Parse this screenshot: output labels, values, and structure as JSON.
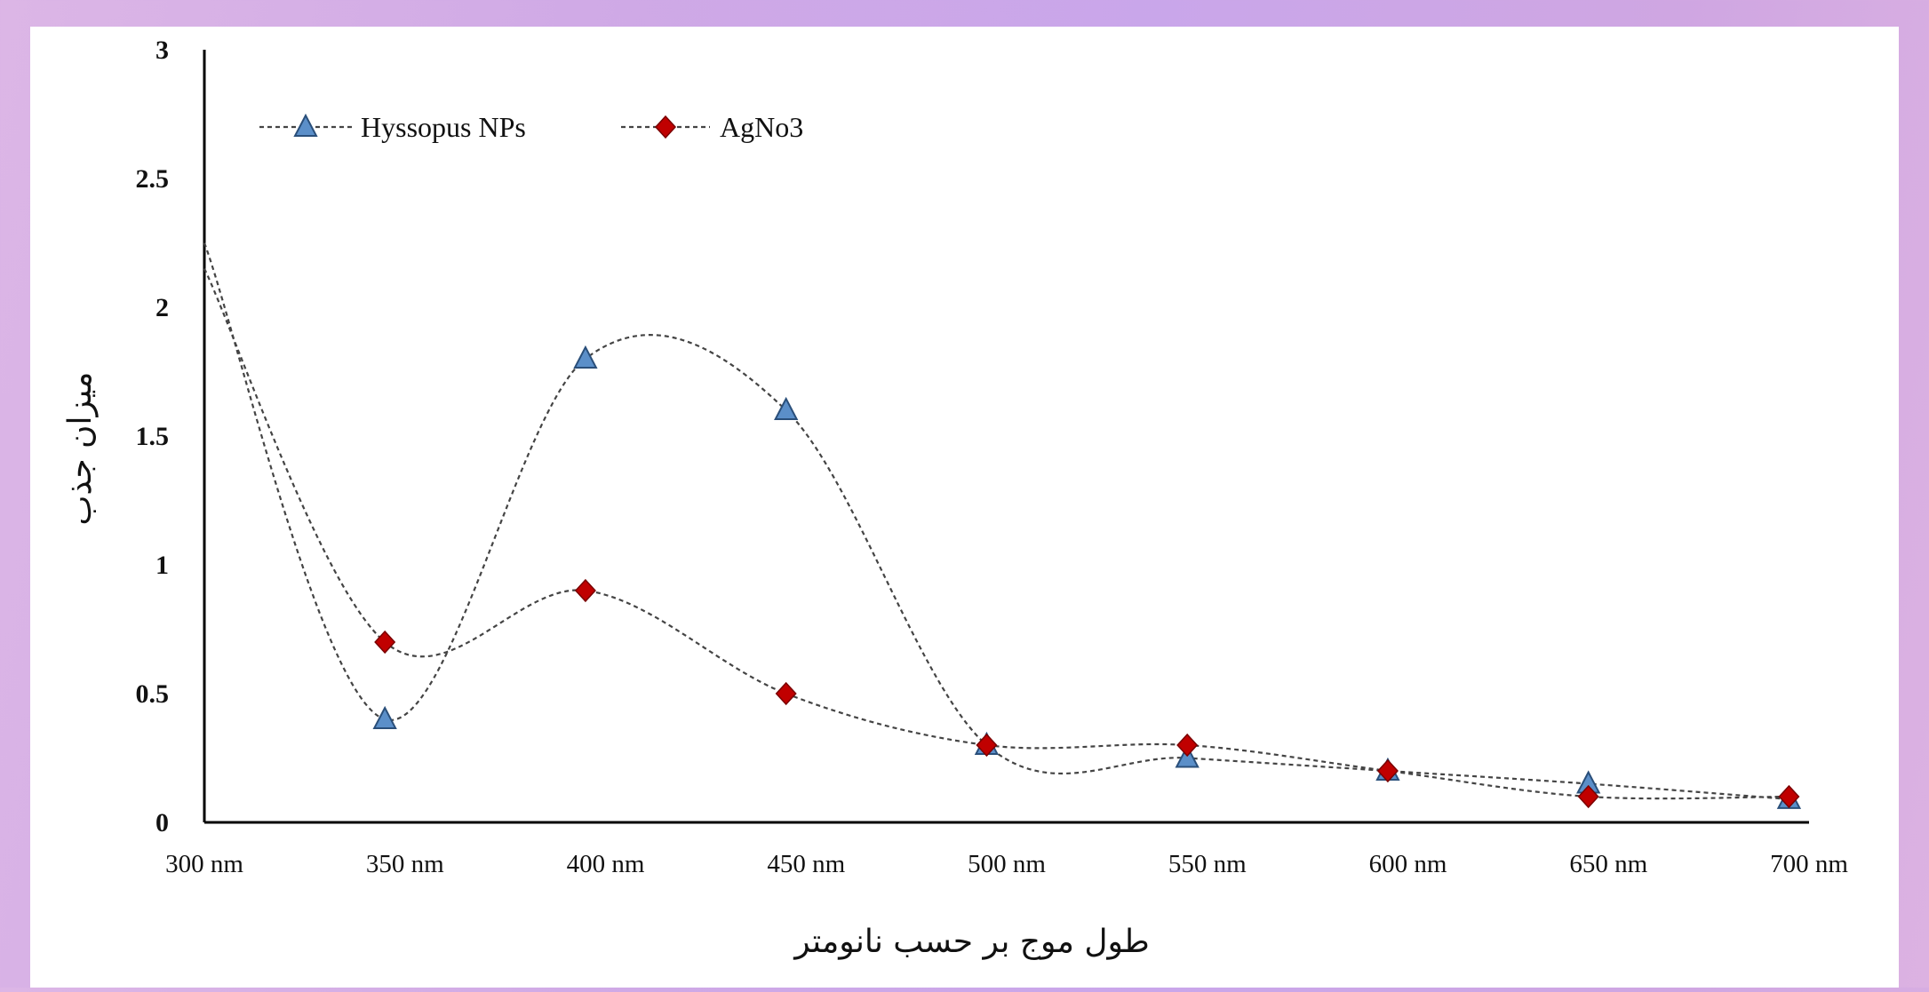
{
  "chart_data": {
    "type": "line",
    "title": "",
    "xlabel": "طول موج بر حسب نانومتر",
    "ylabel": "میزان جذب",
    "categories": [
      "300 nm",
      "350 nm",
      "400 nm",
      "450 nm",
      "500 nm",
      "550 nm",
      "600 nm",
      "650 nm",
      "700 nm"
    ],
    "x_range": [
      300,
      700
    ],
    "ylim": [
      0,
      3
    ],
    "y_ticks": [
      "0",
      "0.5",
      "1",
      "1.5",
      "2",
      "2.5",
      "3"
    ],
    "grid": false,
    "legend_position": "top-left",
    "series": [
      {
        "name": "Hyssopus NPs",
        "marker": "triangle",
        "color": "#5b8fc9",
        "x": [
          300,
          345,
          395,
          445,
          495,
          545,
          595,
          645,
          695
        ],
        "y": [
          2.25,
          0.4,
          1.8,
          1.6,
          0.3,
          0.25,
          0.2,
          0.15,
          0.09
        ]
      },
      {
        "name": "AgNo3",
        "marker": "diamond",
        "color": "#c00000",
        "x": [
          300,
          345,
          395,
          445,
          495,
          545,
          595,
          645,
          695
        ],
        "y": [
          2.15,
          0.7,
          0.9,
          0.5,
          0.3,
          0.3,
          0.2,
          0.1,
          0.1
        ]
      }
    ]
  }
}
